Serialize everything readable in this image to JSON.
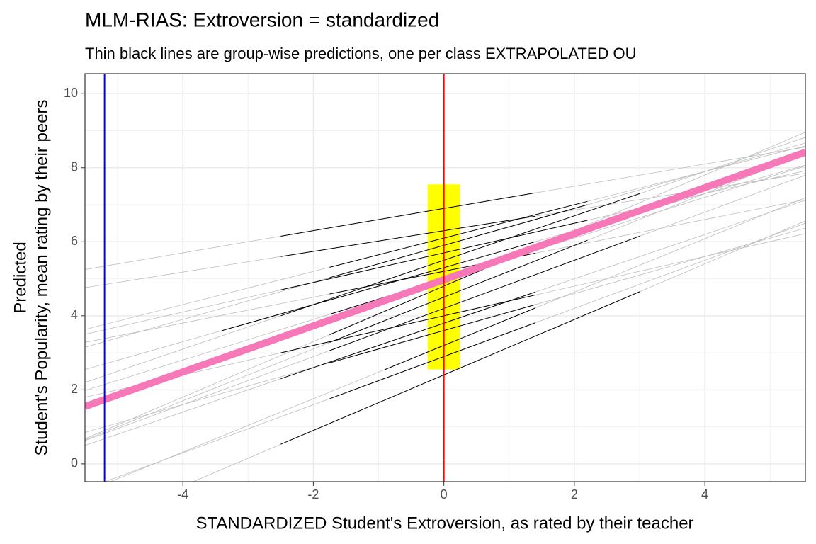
{
  "chart_data": {
    "type": "line",
    "title": "MLM-RIAS: Extroversion = standardized",
    "subtitle": "Thin black lines are group-wise predictions, one per class EXTRAPOLATED OU",
    "x_label": "STANDARDIZED Student's Extroversion, as rated by their teacher",
    "y_label": [
      "Predicted",
      "Student's Popularity, mean rating by their peers"
    ],
    "xlim": [
      -5.5,
      5.54
    ],
    "ylim": [
      -0.48,
      10.54
    ],
    "xticks": [
      -4,
      -2,
      0,
      2,
      4
    ],
    "yticks": [
      0,
      2,
      4,
      6,
      8,
      10
    ],
    "grid": true,
    "extrapolated_color": "#bebebe",
    "group_color": "#000000",
    "groups": [
      {
        "x": [
          -5.5,
          -2.5,
          1.4,
          5.54
        ],
        "values": [
          4.76,
          5.6,
          6.69,
          7.85
        ]
      },
      {
        "x": [
          -5.5,
          -2.5,
          1.4,
          5.54
        ],
        "values": [
          5.25,
          6.15,
          7.32,
          8.56
        ]
      },
      {
        "x": [
          -5.5,
          -2.5,
          3.0,
          5.54
        ],
        "values": [
          -1.73,
          0.53,
          4.65,
          6.56
        ]
      },
      {
        "x": [
          -5.5,
          -3.4,
          1.4,
          5.54
        ],
        "values": [
          2.55,
          3.6,
          6.0,
          8.07
        ]
      },
      {
        "x": [
          -5.5,
          -1.75,
          2.2,
          5.54
        ],
        "values": [
          0.65,
          3.28,
          6.04,
          8.38
        ]
      },
      {
        "x": [
          -5.5,
          -2.5,
          1.4,
          5.54
        ],
        "values": [
          0.5,
          2.3,
          4.64,
          7.12
        ]
      },
      {
        "x": [
          -5.5,
          -1.75,
          1.4,
          5.54
        ],
        "values": [
          1.98,
          4.04,
          5.77,
          8.05
        ]
      },
      {
        "x": [
          -5.5,
          -1.75,
          3.0,
          5.54
        ],
        "values": [
          0.63,
          3.06,
          6.15,
          7.8
        ]
      },
      {
        "x": [
          -5.5,
          -2.5,
          2.2,
          5.54
        ],
        "values": [
          3.5,
          4.7,
          6.58,
          7.92
        ]
      },
      {
        "x": [
          -5.5,
          -1.75,
          1.4,
          5.54
        ],
        "values": [
          0.85,
          2.73,
          4.3,
          6.37
        ]
      },
      {
        "x": [
          -5.5,
          -1.75,
          2.2,
          5.54
        ],
        "values": [
          3.63,
          5.31,
          7.09,
          8.59
        ]
      },
      {
        "x": [
          -5.5,
          -1.75,
          1.4,
          5.54
        ],
        "values": [
          0.68,
          3.49,
          5.85,
          8.96
        ]
      },
      {
        "x": [
          -5.5,
          -2.5,
          3.0,
          5.54
        ],
        "values": [
          2.2,
          4.0,
          7.3,
          8.82
        ]
      },
      {
        "x": [
          -5.5,
          -0.9,
          1.4,
          5.54
        ],
        "values": [
          -0.76,
          2.55,
          4.21,
          7.19
        ]
      },
      {
        "x": [
          -5.5,
          -2.5,
          1.4,
          5.54
        ],
        "values": [
          1.8,
          3.0,
          4.56,
          6.22
        ]
      },
      {
        "x": [
          -5.5,
          -1.75,
          2.2,
          5.54
        ],
        "values": [
          3.15,
          5.03,
          7.0,
          8.67
        ]
      },
      {
        "x": [
          -5.5,
          -1.75,
          1.4,
          5.54
        ],
        "values": [
          -0.68,
          1.76,
          3.81,
          6.5
        ]
      },
      {
        "x": [
          -5.5,
          -1.75,
          1.4,
          5.54
        ],
        "values": [
          3.28,
          4.59,
          5.69,
          7.14
        ]
      }
    ],
    "band": {
      "x": [
        -0.25,
        0.25
      ],
      "values": [
        2.55,
        7.55
      ],
      "color": "#ffff00"
    },
    "fixed": {
      "x": [
        -5.5,
        5.54
      ],
      "values": [
        1.55,
        8.42
      ],
      "color": "#f778b8"
    },
    "vlines": [
      {
        "x": 0,
        "color": "#ff0000"
      },
      {
        "x": -5.2,
        "color": "#0000ff"
      }
    ]
  }
}
